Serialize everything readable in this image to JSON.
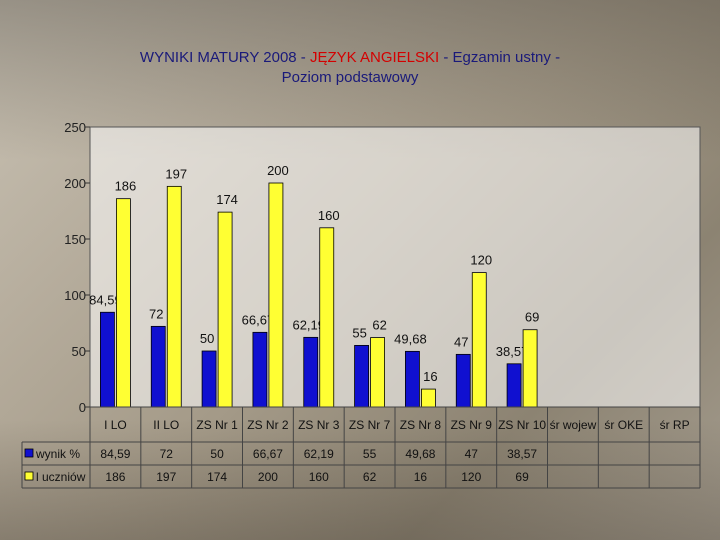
{
  "title": {
    "prefix": "WYNIKI MATURY 2008 - ",
    "highlight": "JĘZYK ANGIELSKI",
    "suffix": " - Egzamin ustny -",
    "line2": "Poziom podstawowy"
  },
  "colors": {
    "series1": "#1010d0",
    "series2": "#ffff33",
    "plot_bg": "#ffffff"
  },
  "chart_data": {
    "type": "bar",
    "title": "WYNIKI MATURY 2008 - JĘZYK ANGIELSKI - Egzamin ustny - Poziom podstawowy",
    "categories": [
      "I LO",
      "II LO",
      "ZS Nr 1",
      "ZS Nr 2",
      "ZS Nr 3",
      "ZS Nr 7",
      "ZS Nr 8",
      "ZS Nr 9",
      "ZS Nr 10",
      "śr wojew",
      "śr OKE",
      "śr RP"
    ],
    "series": [
      {
        "name": "wynik %",
        "values": [
          84.59,
          72,
          50,
          66.67,
          62.19,
          55,
          49.68,
          47,
          38.57,
          null,
          null,
          null
        ],
        "labels": [
          "84,59",
          "72",
          "50",
          "66,67",
          "62,19",
          "55",
          "49,68",
          "47",
          "38,57",
          "",
          "",
          ""
        ]
      },
      {
        "name": "l uczniów",
        "values": [
          186,
          197,
          174,
          200,
          160,
          62,
          16,
          120,
          69,
          null,
          null,
          null
        ],
        "labels": [
          "186",
          "197",
          "174",
          "200",
          "160",
          "62",
          "16",
          "120",
          "69",
          "",
          "",
          ""
        ]
      }
    ],
    "yticks": [
      0,
      50,
      100,
      150,
      200,
      250
    ],
    "ylim": [
      0,
      250
    ],
    "legend": "data-table"
  }
}
